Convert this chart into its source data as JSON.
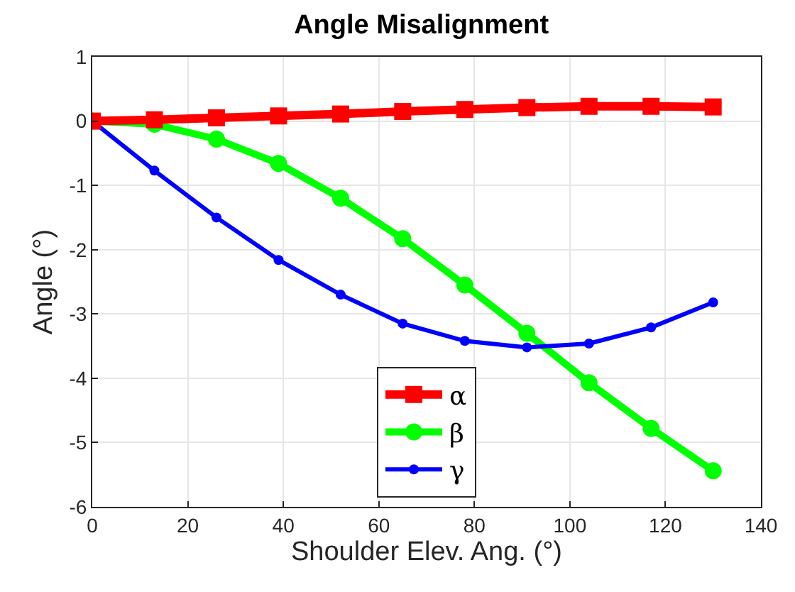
{
  "chart_data": {
    "type": "line",
    "title": "Angle Misalignment",
    "xlabel": "Shoulder Elev. Ang. (°)",
    "ylabel": "Angle (°)",
    "x": [
      0,
      13,
      26,
      39,
      52,
      65,
      78,
      91,
      104,
      117,
      130
    ],
    "series": [
      {
        "name": "α",
        "color": "#ff0000",
        "marker": "square",
        "values": [
          0,
          0.02,
          0.05,
          0.08,
          0.11,
          0.15,
          0.18,
          0.21,
          0.23,
          0.23,
          0.22
        ]
      },
      {
        "name": "β",
        "color": "#00ff00",
        "marker": "circle",
        "values": [
          0,
          -0.05,
          -0.28,
          -0.66,
          -1.2,
          -1.83,
          -2.55,
          -3.3,
          -4.07,
          -4.78,
          -5.44
        ]
      },
      {
        "name": "γ",
        "color": "#0000ff",
        "marker": "circle",
        "values": [
          0,
          -0.77,
          -1.5,
          -2.16,
          -2.7,
          -3.15,
          -3.42,
          -3.52,
          -3.46,
          -3.21,
          -2.82
        ]
      }
    ],
    "xlim": [
      0,
      140
    ],
    "xticks": [
      0,
      20,
      40,
      60,
      80,
      100,
      120,
      140
    ],
    "ylim": [
      -6,
      1
    ],
    "yticks": [
      -6,
      -5,
      -4,
      -3,
      -2,
      -1,
      0,
      1
    ],
    "grid": true,
    "legend": "bottom",
    "line_style": "solid"
  }
}
